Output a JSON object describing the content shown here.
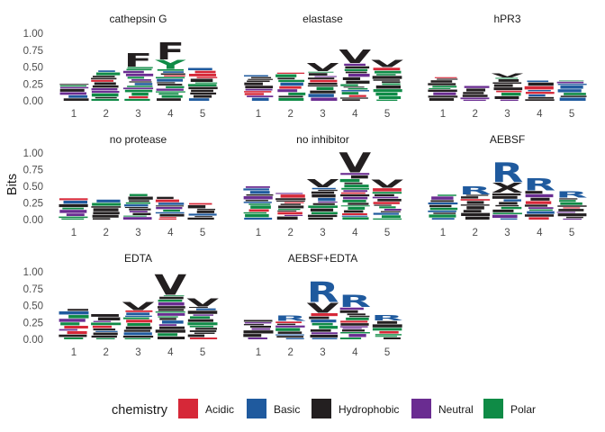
{
  "chart_data": {
    "type": "sequence-logo",
    "ylabel": "Bits",
    "ylim": [
      0,
      1.0
    ],
    "yticks": [
      "0.00",
      "0.25",
      "0.50",
      "0.75",
      "1.00"
    ],
    "xticks": [
      "1",
      "2",
      "3",
      "4",
      "5"
    ],
    "grid": false,
    "legend_position": "bottom",
    "legend": {
      "title": "chemistry",
      "entries": [
        {
          "name": "Acidic",
          "color": "#d62838"
        },
        {
          "name": "Basic",
          "color": "#1f5a9e"
        },
        {
          "name": "Hydrophobic",
          "color": "#231f20"
        },
        {
          "name": "Neutral",
          "color": "#6a2c91"
        },
        {
          "name": "Polar",
          "color": "#0f8b46"
        }
      ]
    },
    "panels": [
      {
        "title": "cathepsin G",
        "heights": [
          0.25,
          0.45,
          0.7,
          0.85,
          0.5
        ],
        "top_letters": [
          {
            "pos": 3,
            "letter": "F",
            "chemistry": "Hydrophobic",
            "bits": 0.2
          },
          {
            "pos": 4,
            "letter": "F",
            "chemistry": "Hydrophobic",
            "bits": 0.25
          },
          {
            "pos": 4,
            "letter": "Y",
            "chemistry": "Polar",
            "bits": 0.13
          }
        ]
      },
      {
        "title": "elastase",
        "heights": [
          0.38,
          0.42,
          0.55,
          0.75,
          0.6
        ],
        "top_letters": [
          {
            "pos": 3,
            "letter": "V",
            "chemistry": "Hydrophobic",
            "bits": 0.12
          },
          {
            "pos": 4,
            "letter": "V",
            "chemistry": "Hydrophobic",
            "bits": 0.2
          },
          {
            "pos": 5,
            "letter": "V",
            "chemistry": "Hydrophobic",
            "bits": 0.1
          }
        ]
      },
      {
        "title": "hPR3",
        "heights": [
          0.35,
          0.22,
          0.4,
          0.3,
          0.3
        ],
        "top_letters": [
          {
            "pos": 3,
            "letter": "V",
            "chemistry": "Hydrophobic",
            "bits": 0.06
          }
        ]
      },
      {
        "title": "no protease",
        "heights": [
          0.32,
          0.3,
          0.4,
          0.35,
          0.25
        ],
        "top_letters": []
      },
      {
        "title": "no inhibitor",
        "heights": [
          0.5,
          0.4,
          0.6,
          1.0,
          0.6
        ],
        "top_letters": [
          {
            "pos": 3,
            "letter": "V",
            "chemistry": "Hydrophobic",
            "bits": 0.12
          },
          {
            "pos": 4,
            "letter": "V",
            "chemistry": "Hydrophobic",
            "bits": 0.3
          },
          {
            "pos": 5,
            "letter": "V",
            "chemistry": "Hydrophobic",
            "bits": 0.12
          }
        ]
      },
      {
        "title": "AEBSF",
        "heights": [
          0.38,
          0.5,
          0.85,
          0.62,
          0.42
        ],
        "top_letters": [
          {
            "pos": 2,
            "letter": "R",
            "chemistry": "Basic",
            "bits": 0.12
          },
          {
            "pos": 3,
            "letter": "R",
            "chemistry": "Basic",
            "bits": 0.3
          },
          {
            "pos": 3,
            "letter": "X",
            "chemistry": "Hydrophobic",
            "bits": 0.15
          },
          {
            "pos": 4,
            "letter": "R",
            "chemistry": "Basic",
            "bits": 0.18
          },
          {
            "pos": 5,
            "letter": "R",
            "chemistry": "Basic",
            "bits": 0.1
          }
        ]
      },
      {
        "title": "EDTA",
        "heights": [
          0.45,
          0.38,
          0.55,
          0.95,
          0.6
        ],
        "top_letters": [
          {
            "pos": 3,
            "letter": "V",
            "chemistry": "Hydrophobic",
            "bits": 0.12
          },
          {
            "pos": 4,
            "letter": "V",
            "chemistry": "Hydrophobic",
            "bits": 0.3
          },
          {
            "pos": 5,
            "letter": "V",
            "chemistry": "Hydrophobic",
            "bits": 0.12
          }
        ]
      },
      {
        "title": "AEBSF+EDTA",
        "heights": [
          0.3,
          0.35,
          0.85,
          0.65,
          0.35
        ],
        "top_letters": [
          {
            "pos": 2,
            "letter": "R",
            "chemistry": "Basic",
            "bits": 0.08
          },
          {
            "pos": 3,
            "letter": "R",
            "chemistry": "Basic",
            "bits": 0.3
          },
          {
            "pos": 3,
            "letter": "V",
            "chemistry": "Hydrophobic",
            "bits": 0.15
          },
          {
            "pos": 4,
            "letter": "R",
            "chemistry": "Basic",
            "bits": 0.18
          },
          {
            "pos": 5,
            "letter": "R",
            "chemistry": "Basic",
            "bits": 0.08
          }
        ]
      }
    ]
  }
}
